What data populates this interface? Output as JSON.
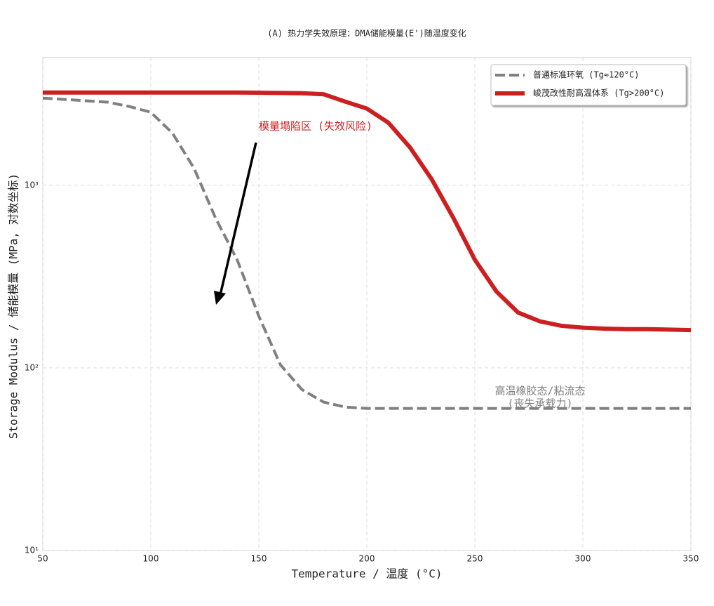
{
  "chart_data": {
    "type": "line",
    "title": "(A) 热力学失效原理：DMA储能模量(E')随温度变化",
    "x_label": "Temperature / 温度 (°C)",
    "y_label": "Storage Modulus / 储能模量 (MPa, 对数坐标)",
    "x": [
      50,
      60,
      70,
      80,
      90,
      100,
      110,
      120,
      130,
      140,
      150,
      160,
      170,
      180,
      190,
      200,
      210,
      220,
      230,
      240,
      250,
      260,
      270,
      280,
      290,
      300,
      310,
      320,
      330,
      340,
      350
    ],
    "series": [
      {
        "name": "普通标准环氧 (Tg≈120°C)",
        "color": "#808080",
        "dash": true,
        "values": [
          3000,
          2950,
          2900,
          2850,
          2700,
          2510,
          1930,
          1240,
          660,
          390,
          192,
          104,
          76,
          65,
          61,
          60,
          60,
          60,
          60,
          60,
          60,
          60,
          60,
          60,
          60,
          60,
          60,
          60,
          60,
          60,
          60
        ]
      },
      {
        "name": "峻茂改性耐高温体系 (Tg>200°C)",
        "color": "#cc1f1f",
        "dash": false,
        "values": [
          3220,
          3220,
          3220,
          3220,
          3220,
          3220,
          3220,
          3220,
          3220,
          3220,
          3210,
          3200,
          3190,
          3150,
          2870,
          2630,
          2200,
          1610,
          1080,
          665,
          391,
          262,
          201,
          180,
          170,
          166,
          164,
          163,
          163,
          162,
          161
        ]
      }
    ],
    "xlim": [
      50,
      350
    ],
    "xticks": [
      50,
      100,
      150,
      200,
      250,
      300,
      350
    ],
    "ylim": [
      10,
      5000
    ],
    "yscale": "log",
    "yticks": [
      {
        "value": 10,
        "label": "10¹"
      },
      {
        "value": 100,
        "label": "10²"
      },
      {
        "value": 1000,
        "label": "10³"
      }
    ],
    "grid": true,
    "legend": "upper right",
    "annotations": [
      "模量塌陷区 (失效风险)",
      "高温橡胶态/粘流态",
      "(丧失承载力)"
    ]
  }
}
